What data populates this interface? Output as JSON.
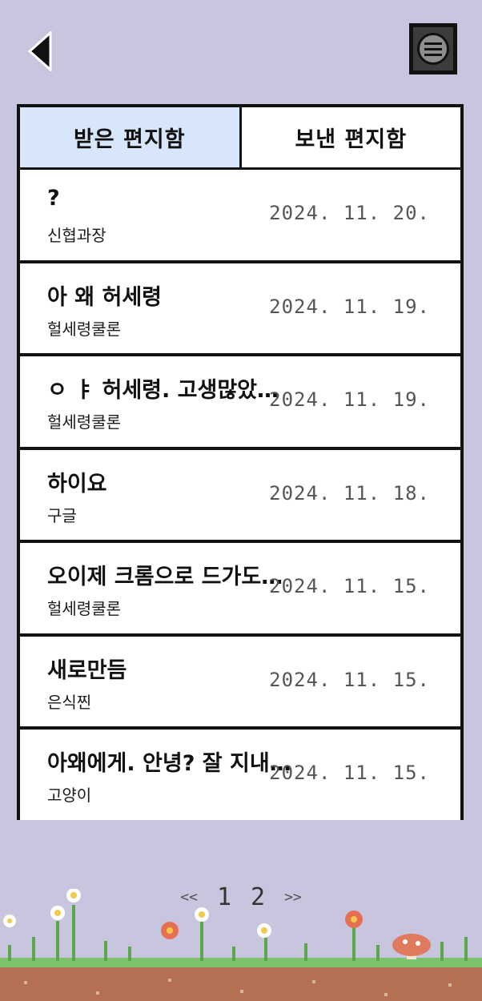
{
  "nav": {
    "back_icon": "back-arrow-icon",
    "menu_icon": "hamburger-menu-icon"
  },
  "tabs": [
    {
      "label": "받은 편지함",
      "active": true
    },
    {
      "label": "보낸 편지함",
      "active": false
    }
  ],
  "messages": [
    {
      "subject": "?",
      "sender": "신협과장",
      "date": "2024. 11. 20."
    },
    {
      "subject": "아 왜 허세령",
      "sender": "헐세령쿨론",
      "date": "2024. 11. 19."
    },
    {
      "subject": "ㅇ ㅑ 허세령. 고생많았…",
      "sender": "헐세령쿨론",
      "date": "2024. 11. 19."
    },
    {
      "subject": "하이요",
      "sender": "구글",
      "date": "2024. 11. 18."
    },
    {
      "subject": "오이제 크롬으로 드가도…",
      "sender": "헐세령쿨론",
      "date": "2024. 11. 15."
    },
    {
      "subject": "새로만듬",
      "sender": "은식찐",
      "date": "2024. 11. 15."
    },
    {
      "subject": "아왜에게. 안녕? 잘 지내…",
      "sender": "고양이",
      "date": "2024. 11. 15."
    }
  ],
  "pagination": {
    "prev": "<<",
    "pages": [
      "1",
      "2"
    ],
    "next": ">>"
  },
  "colors": {
    "background": "#c7c6de",
    "active_tab": "#d8e6fb",
    "border": "#111111"
  }
}
